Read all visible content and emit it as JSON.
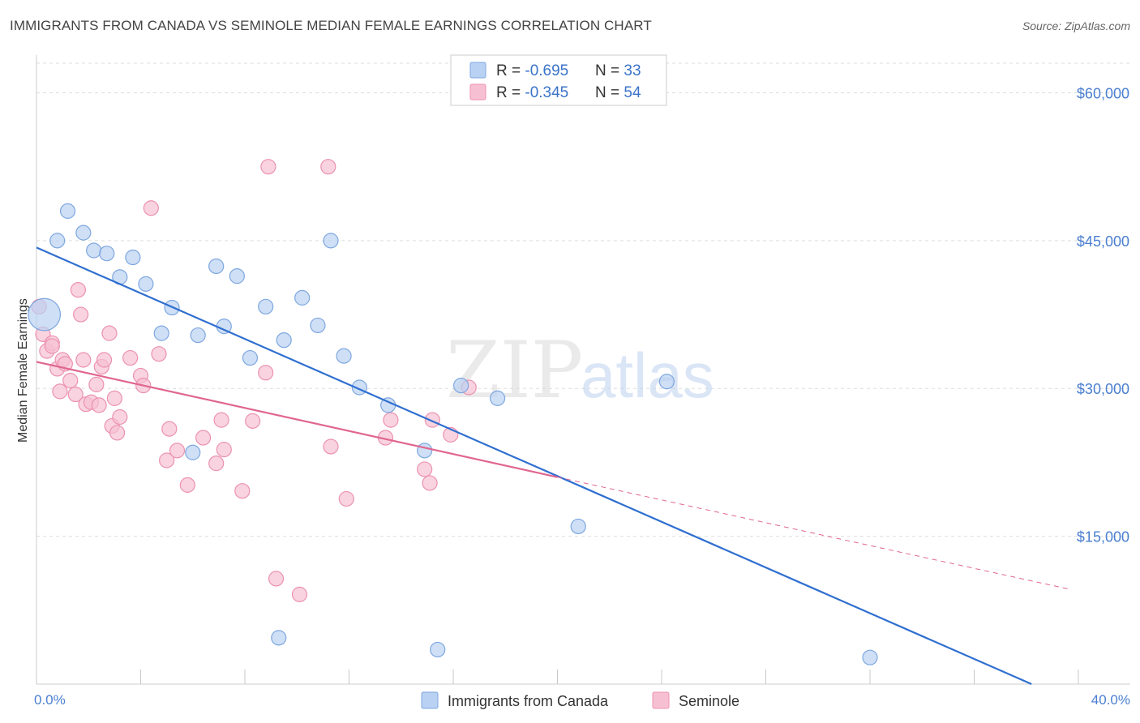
{
  "title": "IMMIGRANTS FROM CANADA VS SEMINOLE MEDIAN FEMALE EARNINGS CORRELATION CHART",
  "source": "Source: ZipAtlas.com",
  "watermark": {
    "zip": "ZIP",
    "atlas": "atlas"
  },
  "colors": {
    "blue_fill": "#b9d1f2",
    "blue_stroke": "#7ea7e0",
    "blue_line": "#2f6fd0",
    "pink_fill": "#f7c0d2",
    "pink_stroke": "#ec92b0",
    "pink_line": "#e06690",
    "grid": "#dddddd",
    "tick_label": "#4a7fd0"
  },
  "legend": {
    "rows": [
      {
        "r_label": "R = ",
        "r_value": "-0.695",
        "n_label": "N = ",
        "n_value": "33"
      },
      {
        "r_label": "R = ",
        "r_value": "-0.345",
        "n_label": "N = ",
        "n_value": "54"
      }
    ]
  },
  "chart_data": {
    "type": "scatter",
    "title": "IMMIGRANTS FROM CANADA VS SEMINOLE MEDIAN FEMALE EARNINGS CORRELATION CHART",
    "xlabel": "",
    "ylabel": "Median Female Earnings",
    "xlim": [
      0,
      40
    ],
    "ylim": [
      0,
      63000
    ],
    "x_tick_labels": [
      "0.0%",
      "40.0%"
    ],
    "y_ticks": [
      15000,
      30000,
      45000,
      60000
    ],
    "y_tick_labels": [
      "$15,000",
      "$30,000",
      "$45,000",
      "$60,000"
    ],
    "grid": true,
    "legend_position": "top-center",
    "series": [
      {
        "name": "Immigrants from Canada",
        "points": [
          [
            0.3,
            37500,
            2.2
          ],
          [
            0.8,
            45000,
            1
          ],
          [
            1.2,
            48000,
            1
          ],
          [
            1.8,
            45800,
            1
          ],
          [
            2.2,
            44000,
            1
          ],
          [
            2.7,
            43700,
            1
          ],
          [
            3.2,
            41300,
            1
          ],
          [
            3.7,
            43300,
            1
          ],
          [
            4.2,
            40600,
            1
          ],
          [
            4.8,
            35600,
            1
          ],
          [
            5.2,
            38200,
            1
          ],
          [
            6.0,
            23500,
            1
          ],
          [
            6.2,
            35400,
            1
          ],
          [
            6.9,
            42400,
            1
          ],
          [
            7.2,
            36300,
            1
          ],
          [
            7.7,
            41400,
            1
          ],
          [
            8.2,
            33100,
            1
          ],
          [
            8.8,
            38300,
            1
          ],
          [
            9.3,
            4700,
            1
          ],
          [
            9.5,
            34900,
            1
          ],
          [
            10.2,
            39200,
            1
          ],
          [
            10.8,
            36400,
            1
          ],
          [
            11.3,
            45000,
            1
          ],
          [
            11.8,
            33300,
            1
          ],
          [
            12.4,
            30100,
            1
          ],
          [
            13.5,
            28300,
            1
          ],
          [
            14.9,
            23700,
            1
          ],
          [
            15.4,
            3500,
            1
          ],
          [
            16.3,
            30300,
            1
          ],
          [
            17.7,
            29000,
            1
          ],
          [
            20.8,
            16000,
            1
          ],
          [
            24.2,
            30700,
            1
          ],
          [
            32.0,
            2700,
            1
          ]
        ],
        "trend": {
          "x": [
            0,
            38.2
          ],
          "y": [
            44300,
            0
          ]
        }
      },
      {
        "name": "Seminole",
        "points": [
          [
            0.1,
            38300,
            1
          ],
          [
            0.25,
            35500,
            1
          ],
          [
            0.4,
            33800,
            1
          ],
          [
            0.6,
            34600,
            1
          ],
          [
            0.6,
            34300,
            1
          ],
          [
            0.8,
            32000,
            1
          ],
          [
            0.9,
            29700,
            1
          ],
          [
            1.0,
            32900,
            1
          ],
          [
            1.1,
            32500,
            1
          ],
          [
            1.3,
            30800,
            1
          ],
          [
            1.5,
            29400,
            1
          ],
          [
            1.6,
            40000,
            1
          ],
          [
            1.7,
            37500,
            1
          ],
          [
            1.8,
            32900,
            1
          ],
          [
            1.9,
            28400,
            1
          ],
          [
            2.1,
            28600,
            1
          ],
          [
            2.3,
            30400,
            1
          ],
          [
            2.4,
            28300,
            1
          ],
          [
            2.5,
            32200,
            1
          ],
          [
            2.6,
            32900,
            1
          ],
          [
            2.8,
            35600,
            1
          ],
          [
            2.9,
            26200,
            1
          ],
          [
            3.0,
            29000,
            1
          ],
          [
            3.1,
            25500,
            1
          ],
          [
            3.2,
            27100,
            1
          ],
          [
            3.6,
            33100,
            1
          ],
          [
            4.0,
            31300,
            1
          ],
          [
            4.1,
            30300,
            1
          ],
          [
            4.4,
            48300,
            1
          ],
          [
            4.7,
            33500,
            1
          ],
          [
            5.0,
            22700,
            1
          ],
          [
            5.1,
            25900,
            1
          ],
          [
            5.4,
            23700,
            1
          ],
          [
            5.8,
            20200,
            1
          ],
          [
            6.4,
            25000,
            1
          ],
          [
            6.9,
            22400,
            1
          ],
          [
            7.1,
            26800,
            1
          ],
          [
            7.2,
            23800,
            1
          ],
          [
            7.9,
            19600,
            1
          ],
          [
            8.3,
            26700,
            1
          ],
          [
            8.8,
            31600,
            1
          ],
          [
            8.9,
            52500,
            1
          ],
          [
            9.2,
            10700,
            1
          ],
          [
            10.1,
            9100,
            1
          ],
          [
            11.2,
            52500,
            1
          ],
          [
            11.3,
            24100,
            1
          ],
          [
            11.9,
            18800,
            1
          ],
          [
            13.4,
            25000,
            1
          ],
          [
            13.6,
            26800,
            1
          ],
          [
            14.9,
            21800,
            1
          ],
          [
            15.1,
            20400,
            1
          ],
          [
            15.2,
            26800,
            1
          ],
          [
            15.9,
            25300,
            1
          ],
          [
            16.6,
            30100,
            1
          ]
        ],
        "trend": {
          "x": [
            0,
            20.0
          ],
          "y": [
            32700,
            21000
          ]
        },
        "trend_extension": {
          "x": [
            20.0,
            40.0
          ],
          "y": [
            21000,
            9400
          ]
        }
      }
    ]
  }
}
